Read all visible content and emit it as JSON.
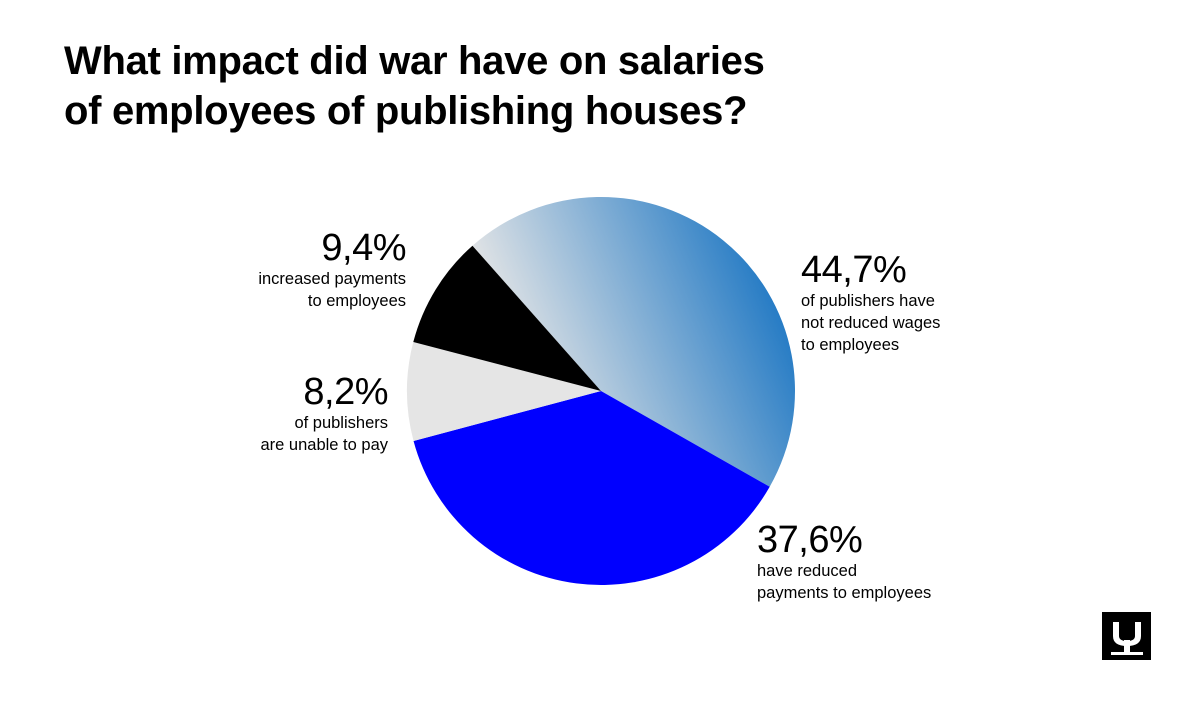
{
  "title_lines": [
    "What impact did war have on salaries",
    "of employees of publishing houses?"
  ],
  "colors": {
    "not_reduced_gradient": [
      "#e6e6e6",
      "#0a6cc0"
    ],
    "reduced": "#0000ff",
    "unable": "#e5e5e5",
    "increased": "#000000"
  },
  "chart_data": {
    "type": "pie",
    "title": "What impact did war have on salaries of employees of publishing houses?",
    "slices": [
      {
        "value": 44.7,
        "pct_label": "44,7%",
        "desc_lines": [
          "of publishers have",
          "not reduced wages",
          "to employees"
        ]
      },
      {
        "value": 37.6,
        "pct_label": "37,6%",
        "desc_lines": [
          "have reduced",
          "payments to employees"
        ]
      },
      {
        "value": 8.2,
        "pct_label": "8,2%",
        "desc_lines": [
          "of publishers",
          "are unable to pay"
        ]
      },
      {
        "value": 9.4,
        "pct_label": "9,4%",
        "desc_lines": [
          "increased payments",
          "to employees"
        ]
      }
    ]
  },
  "logo": {
    "icon": "publisher-logo-icon"
  }
}
